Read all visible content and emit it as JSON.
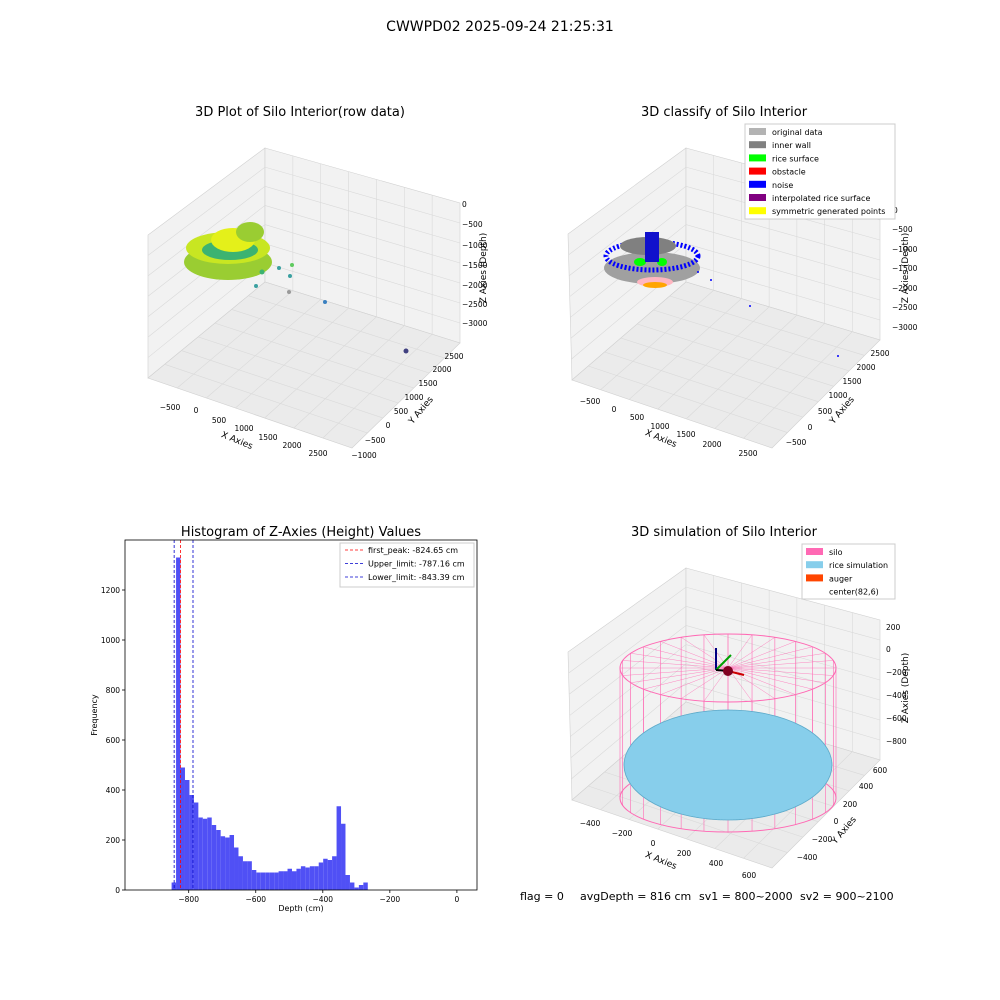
{
  "figure_title": "CWWPD02 2025-09-24 21:25:31",
  "status_line": {
    "flag": "flag = 0",
    "avg": "avgDepth = 816 cm",
    "sv1": "sv1 = 800~2000",
    "sv2": "sv2 = 900~2100"
  },
  "colors": {
    "hist_bar": "#5050f5",
    "first_peak_line": "#ff0000",
    "limit_line": "#0000cc",
    "pane": "#f2f2f2",
    "grid": "#d9d9d9",
    "original_data": "#b3b3b3",
    "inner_wall": "#808080",
    "rice_surface": "#00ff00",
    "obstacle": "#ff0000",
    "noise": "#0000ff",
    "interpolated_rice_surface": "#800080",
    "symmetric_generated_points": "#ffff00",
    "silo": "#ff69b4",
    "rice_simulation": "#87ceeb",
    "auger": "#ff4500"
  },
  "chart_data": [
    {
      "type": "scatter",
      "projection": "3d",
      "title": "3D Plot of Silo Interior(row data)",
      "xlabel": "X Axies",
      "ylabel": "Y Axies",
      "zlabel": "Z Axies (Depth)",
      "xticks": [
        "−500",
        "0",
        "500",
        "1000",
        "1500",
        "2000",
        "2500"
      ],
      "yticks": [
        "−1000",
        "−500",
        "0",
        "500",
        "1000",
        "1500",
        "2000",
        "2500"
      ],
      "zticks": [
        "0",
        "−500",
        "−1000",
        "−1500",
        "−2000",
        "−2500",
        "−3000"
      ],
      "xlim": [
        -700,
        2700
      ],
      "ylim": [
        -1000,
        2600
      ],
      "zlim": [
        -3200,
        100
      ],
      "grid": true
    },
    {
      "type": "scatter",
      "projection": "3d",
      "title": "3D classify of Silo Interior",
      "xlabel": "X Axies",
      "ylabel": "Y Axies",
      "zlabel": "Z Axies (Depth)",
      "xticks": [
        "−500",
        "0",
        "500",
        "1000",
        "1500",
        "2000",
        "2500"
      ],
      "yticks": [
        "−500",
        "0",
        "500",
        "1000",
        "1500",
        "2000",
        "2500"
      ],
      "zticks": [
        "−500",
        "−1000",
        "−1500",
        "−2000",
        "−2500",
        "−3000"
      ],
      "legend_position": "top-right",
      "legend": [
        "original data",
        "inner wall",
        "rice surface",
        "obstacle",
        "noise",
        "interpolated rice surface",
        "symmetric generated points"
      ],
      "zextra_tick": "0",
      "grid": true
    },
    {
      "type": "bar",
      "title": "Histogram of Z-Axies (Height) Values",
      "xlabel": "Depth (cm)",
      "ylabel": "Frequency",
      "xlim": [
        -990,
        60
      ],
      "ylim": [
        0,
        1400
      ],
      "xticks": [
        -800,
        -600,
        -400,
        -200,
        0
      ],
      "xtick_labels": [
        "−800",
        "−600",
        "−400",
        "−200",
        "0"
      ],
      "yticks": [
        0,
        200,
        400,
        600,
        800,
        1000,
        1200
      ],
      "bin_edges_start": -851,
      "bin_width": 13.3,
      "values": [
        30,
        1330,
        490,
        440,
        380,
        350,
        290,
        285,
        290,
        260,
        240,
        215,
        210,
        220,
        170,
        135,
        115,
        115,
        80,
        70,
        70,
        70,
        70,
        70,
        75,
        75,
        85,
        75,
        85,
        95,
        90,
        95,
        95,
        110,
        125,
        120,
        135,
        335,
        265,
        60,
        30,
        10,
        20,
        30
      ],
      "reference_lines": [
        {
          "label": "first_peak: -824.65 cm",
          "x": -824.65,
          "color": "#ff0000"
        },
        {
          "label": "Upper_limit: -787.16 cm",
          "x": -787.16,
          "color": "#0000cc"
        },
        {
          "label": "Lower_limit: -843.39 cm",
          "x": -843.39,
          "color": "#0000cc"
        }
      ],
      "legend_position": "top-right",
      "grid": false
    },
    {
      "type": "scatter",
      "projection": "3d",
      "title": "3D simulation of Silo Interior",
      "xlabel": "X Axies",
      "ylabel": "Y Axies",
      "zlabel": "Z Axies (Depth)",
      "xticks": [
        "−400",
        "−200",
        "0",
        "200",
        "400",
        "600"
      ],
      "yticks": [
        "−400",
        "−200",
        "0",
        "200",
        "400",
        "600"
      ],
      "zticks": [
        "200",
        "0",
        "−200",
        "−400",
        "−600",
        "−800"
      ],
      "legend_position": "top-right",
      "legend": [
        "silo",
        "rice simulation",
        "auger",
        "center(82,6)"
      ],
      "grid": true
    }
  ]
}
